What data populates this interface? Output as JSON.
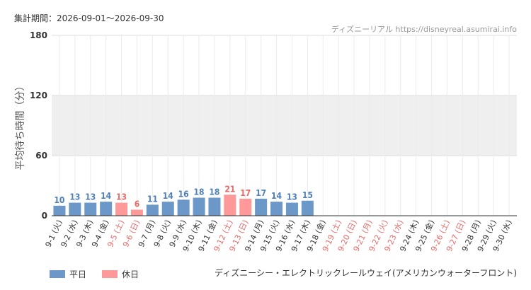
{
  "header": {
    "period_label": "集計期間：2026-09-01～2026-09-30",
    "credit": "ディズニーリアル https://disneyreal.asumirai.info"
  },
  "footer": {
    "attraction_name": "ディズニーシー・エレクトリックレールウェイ(アメリカンウォーターフロント)"
  },
  "colors": {
    "weekday": "#6b98c8",
    "holiday": "#ff9999",
    "weekday_text": "#4f7fb3",
    "holiday_text": "#e86a6a",
    "band": "#efefef"
  },
  "chart_data": {
    "type": "bar",
    "ylabel": "平均待ち時間（分）",
    "ylim": [
      0,
      180
    ],
    "yticks": [
      0,
      60,
      120,
      180
    ],
    "highlight_band": [
      60,
      120
    ],
    "legend": [
      {
        "name": "平日",
        "kind": "weekday"
      },
      {
        "name": "休日",
        "kind": "holiday"
      }
    ],
    "categories": [
      "9-1 (火)",
      "9-2 (水)",
      "9-3 (木)",
      "9-4 (金)",
      "9-5 (土)",
      "9-6 (日)",
      "9-7 (月)",
      "9-8 (火)",
      "9-9 (水)",
      "9-10 (木)",
      "9-11 (金)",
      "9-12 (土)",
      "9-13 (日)",
      "9-14 (月)",
      "9-15 (火)",
      "9-16 (水)",
      "9-17 (木)",
      "9-18 (金)",
      "9-19 (土)",
      "9-20 (日)",
      "9-21 (月)",
      "9-22 (火)",
      "9-23 (水)",
      "9-24 (木)",
      "9-25 (金)",
      "9-26 (土)",
      "9-27 (日)",
      "9-28 (月)",
      "9-29 (火)",
      "9-30 (水)"
    ],
    "day_kind": [
      "weekday",
      "weekday",
      "weekday",
      "weekday",
      "holiday",
      "holiday",
      "weekday",
      "weekday",
      "weekday",
      "weekday",
      "weekday",
      "holiday",
      "holiday",
      "weekday",
      "weekday",
      "weekday",
      "weekday",
      "weekday",
      "holiday",
      "holiday",
      "holiday",
      "holiday",
      "holiday",
      "weekday",
      "weekday",
      "holiday",
      "holiday",
      "weekday",
      "weekday",
      "weekday"
    ],
    "values": [
      10,
      13,
      13,
      14,
      13,
      6,
      11,
      14,
      16,
      18,
      18,
      21,
      17,
      17,
      14,
      13,
      15,
      null,
      null,
      null,
      null,
      null,
      null,
      null,
      null,
      null,
      null,
      null,
      null,
      null
    ]
  }
}
